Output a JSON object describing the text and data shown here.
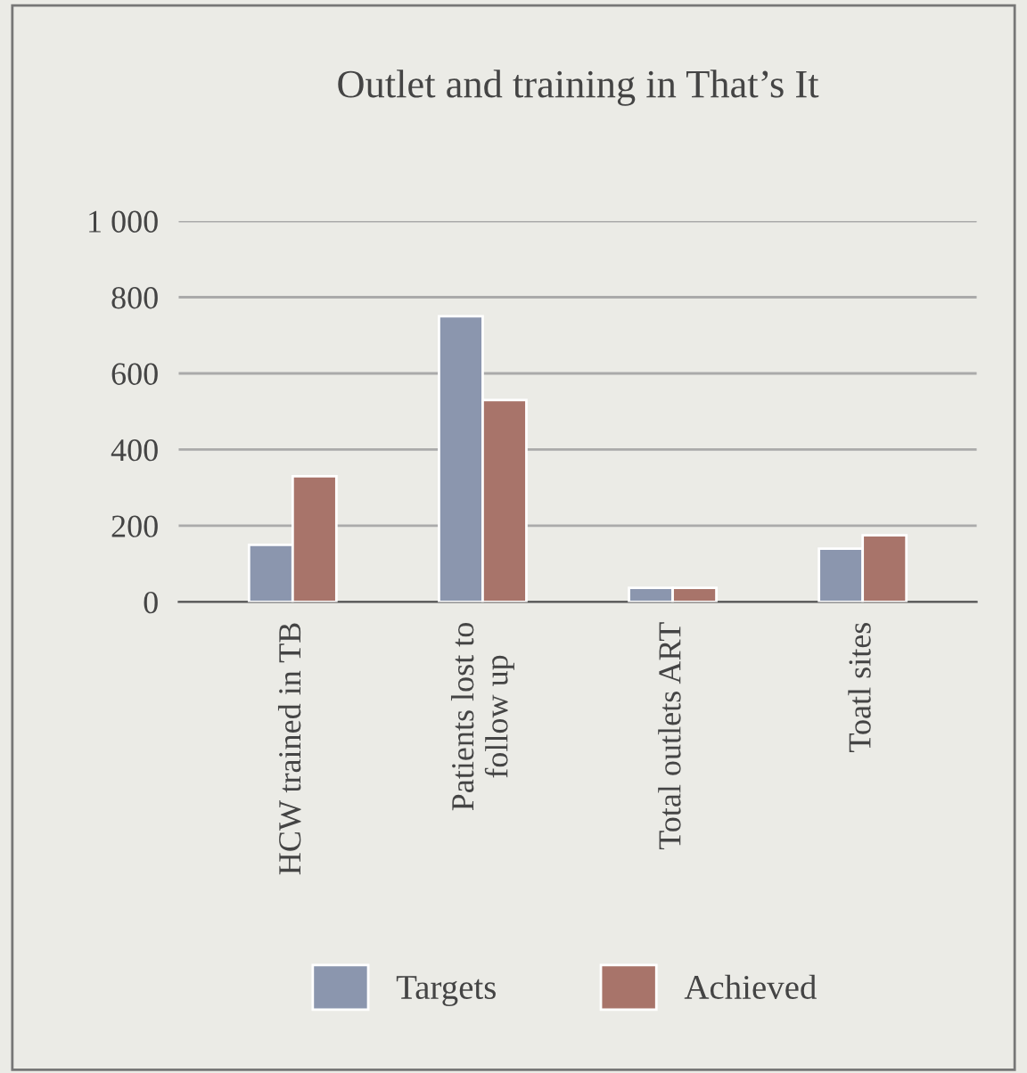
{
  "chart_data": {
    "type": "bar",
    "title": "Outlet and training in That’s It",
    "categories": [
      "HCW trained in TB",
      "Patients lost to\nfollow up",
      "Total outlets ART",
      "Toatl sites"
    ],
    "series": [
      {
        "name": "Targets",
        "color": "#8b96ae",
        "values": [
          150,
          750,
          37,
          140
        ]
      },
      {
        "name": "Achieved",
        "color": "#a8746a",
        "values": [
          330,
          530,
          37,
          175
        ]
      }
    ],
    "ylim": [
      0,
      1000
    ],
    "yticks": [
      0,
      200,
      400,
      600,
      800,
      {
        "value": 1000,
        "label": "1 000"
      }
    ],
    "grid": "y",
    "legend": "bottom"
  }
}
